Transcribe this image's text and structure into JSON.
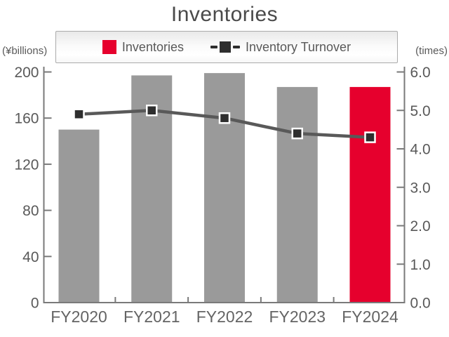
{
  "title": "Inventories",
  "legend": {
    "inventories_label": "Inventories",
    "turnover_label": "Inventory Turnover"
  },
  "left_axis_unit": "(¥billions)",
  "right_axis_unit": "(times)",
  "colors": {
    "bar_gray": "#9a9a9a",
    "bar_red": "#e6002d",
    "line": "#595959",
    "marker": "#2e2e2e",
    "axis": "#7a7a7a",
    "title_text": "#4a4a4a"
  },
  "chart_data": {
    "type": "bar+line",
    "title": "Inventories",
    "categories": [
      "FY2020",
      "FY2021",
      "FY2022",
      "FY2023",
      "FY2024"
    ],
    "series": [
      {
        "name": "Inventories",
        "type": "bar",
        "axis": "left",
        "unit": "¥billions",
        "values": [
          150,
          197,
          199,
          187,
          187
        ]
      },
      {
        "name": "Inventory Turnover",
        "type": "line",
        "axis": "right",
        "unit": "times",
        "values": [
          4.9,
          5.0,
          4.8,
          4.4,
          4.3
        ]
      }
    ],
    "left_axis": {
      "label": "(¥billions)",
      "range": [
        0,
        200
      ],
      "tick_labels": [
        "0",
        "40",
        "80",
        "120",
        "160",
        "200"
      ],
      "tick_values": [
        0,
        40,
        80,
        120,
        160,
        200
      ]
    },
    "right_axis": {
      "label": "(times)",
      "range": [
        0,
        6
      ],
      "tick_labels": [
        "0.0",
        "1.0",
        "2.0",
        "3.0",
        "4.0",
        "5.0",
        "6.0"
      ],
      "tick_values": [
        0,
        1,
        2,
        3,
        4,
        5,
        6
      ]
    },
    "highlight_index": 4,
    "legend_position": "top",
    "grid": false
  }
}
